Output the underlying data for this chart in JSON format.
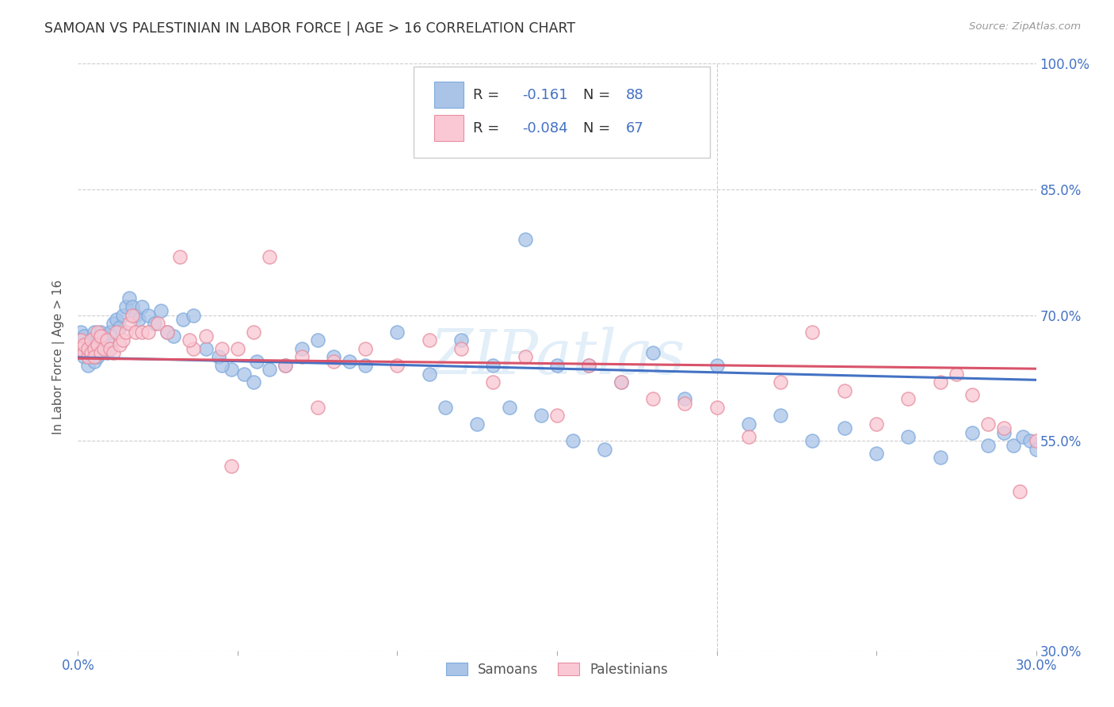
{
  "title": "SAMOAN VS PALESTINIAN IN LABOR FORCE | AGE > 16 CORRELATION CHART",
  "source": "Source: ZipAtlas.com",
  "ylabel": "In Labor Force | Age > 16",
  "x_min": 0.0,
  "x_max": 0.3,
  "y_min": 0.3,
  "y_max": 1.0,
  "x_ticks": [
    0.0,
    0.05,
    0.1,
    0.15,
    0.2,
    0.25,
    0.3
  ],
  "x_tick_labels": [
    "0.0%",
    "",
    "",
    "",
    "",
    "",
    "30.0%"
  ],
  "y_ticks": [
    0.3,
    0.55,
    0.7,
    0.85,
    1.0
  ],
  "y_tick_labels": [
    "30.0%",
    "55.0%",
    "70.0%",
    "85.0%",
    "100.0%"
  ],
  "samoan_color": "#aac4e8",
  "samoan_edge_color": "#7faadd",
  "palestinian_color": "#f9c8d4",
  "palestinian_edge_color": "#e88fa0",
  "samoan_line_color": "#4472c4",
  "palestinian_line_color": "#d9536a",
  "R_samoan": -0.161,
  "N_samoan": 88,
  "R_palestinian": -0.084,
  "N_palestinian": 67,
  "samoan_x": [
    0.001,
    0.001,
    0.002,
    0.002,
    0.002,
    0.003,
    0.003,
    0.003,
    0.004,
    0.004,
    0.004,
    0.005,
    0.005,
    0.005,
    0.006,
    0.006,
    0.006,
    0.007,
    0.007,
    0.007,
    0.008,
    0.008,
    0.009,
    0.009,
    0.01,
    0.01,
    0.011,
    0.012,
    0.013,
    0.014,
    0.015,
    0.016,
    0.017,
    0.018,
    0.019,
    0.02,
    0.022,
    0.024,
    0.026,
    0.028,
    0.03,
    0.033,
    0.036,
    0.04,
    0.044,
    0.048,
    0.052,
    0.056,
    0.06,
    0.065,
    0.07,
    0.075,
    0.08,
    0.085,
    0.09,
    0.1,
    0.11,
    0.12,
    0.13,
    0.14,
    0.15,
    0.16,
    0.17,
    0.18,
    0.19,
    0.2,
    0.21,
    0.22,
    0.23,
    0.24,
    0.25,
    0.26,
    0.27,
    0.28,
    0.285,
    0.29,
    0.293,
    0.296,
    0.298,
    0.3,
    0.045,
    0.055,
    0.115,
    0.125,
    0.135,
    0.145,
    0.155,
    0.165
  ],
  "samoan_y": [
    0.67,
    0.68,
    0.66,
    0.675,
    0.65,
    0.655,
    0.665,
    0.64,
    0.66,
    0.67,
    0.65,
    0.68,
    0.655,
    0.645,
    0.67,
    0.65,
    0.665,
    0.66,
    0.68,
    0.655,
    0.675,
    0.665,
    0.67,
    0.655,
    0.68,
    0.66,
    0.69,
    0.695,
    0.685,
    0.7,
    0.71,
    0.72,
    0.71,
    0.7,
    0.695,
    0.71,
    0.7,
    0.69,
    0.705,
    0.68,
    0.675,
    0.695,
    0.7,
    0.66,
    0.65,
    0.635,
    0.63,
    0.645,
    0.635,
    0.64,
    0.66,
    0.67,
    0.65,
    0.645,
    0.64,
    0.68,
    0.63,
    0.67,
    0.64,
    0.79,
    0.64,
    0.64,
    0.62,
    0.655,
    0.6,
    0.64,
    0.57,
    0.58,
    0.55,
    0.565,
    0.535,
    0.555,
    0.53,
    0.56,
    0.545,
    0.56,
    0.545,
    0.555,
    0.55,
    0.54,
    0.64,
    0.62,
    0.59,
    0.57,
    0.59,
    0.58,
    0.55,
    0.54
  ],
  "palestinian_x": [
    0.001,
    0.001,
    0.002,
    0.002,
    0.003,
    0.003,
    0.004,
    0.004,
    0.005,
    0.005,
    0.006,
    0.006,
    0.007,
    0.007,
    0.008,
    0.009,
    0.01,
    0.011,
    0.012,
    0.013,
    0.014,
    0.015,
    0.016,
    0.017,
    0.018,
    0.02,
    0.022,
    0.025,
    0.028,
    0.032,
    0.036,
    0.04,
    0.045,
    0.05,
    0.055,
    0.06,
    0.065,
    0.07,
    0.08,
    0.09,
    0.1,
    0.11,
    0.12,
    0.13,
    0.14,
    0.15,
    0.16,
    0.17,
    0.18,
    0.19,
    0.2,
    0.21,
    0.22,
    0.23,
    0.24,
    0.25,
    0.26,
    0.27,
    0.275,
    0.28,
    0.285,
    0.29,
    0.295,
    0.3,
    0.035,
    0.048,
    0.075
  ],
  "palestinian_y": [
    0.67,
    0.66,
    0.655,
    0.665,
    0.65,
    0.66,
    0.655,
    0.67,
    0.66,
    0.65,
    0.68,
    0.665,
    0.675,
    0.655,
    0.66,
    0.67,
    0.66,
    0.655,
    0.68,
    0.665,
    0.67,
    0.68,
    0.69,
    0.7,
    0.68,
    0.68,
    0.68,
    0.69,
    0.68,
    0.77,
    0.66,
    0.675,
    0.66,
    0.66,
    0.68,
    0.77,
    0.64,
    0.65,
    0.645,
    0.66,
    0.64,
    0.67,
    0.66,
    0.62,
    0.65,
    0.58,
    0.64,
    0.62,
    0.6,
    0.595,
    0.59,
    0.555,
    0.62,
    0.68,
    0.61,
    0.57,
    0.6,
    0.62,
    0.63,
    0.605,
    0.57,
    0.565,
    0.49,
    0.55,
    0.67,
    0.52,
    0.59
  ],
  "background_color": "#ffffff",
  "grid_color": "#cccccc",
  "title_color": "#333333",
  "axis_label_color": "#4472c4",
  "watermark": "ZIPatlas",
  "watermark_color": "#d0e4f4"
}
